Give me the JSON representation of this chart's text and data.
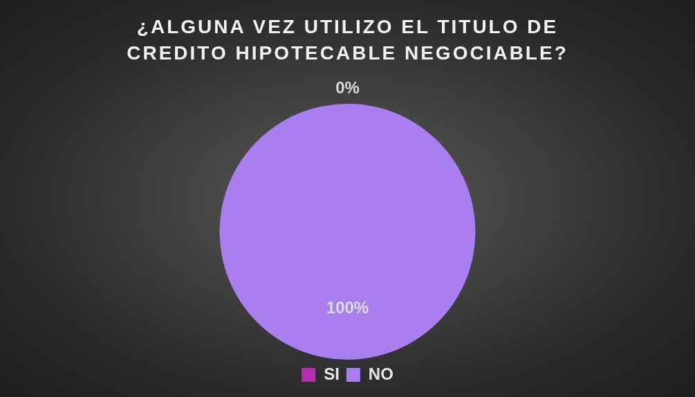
{
  "chart_data": {
    "type": "pie",
    "title": "¿ALGUNA VEZ UTILIZO EL TITULO DE CREDITO HIPOTECABLE NEGOCIABLE?",
    "categories": [
      "SI",
      "NO"
    ],
    "values": [
      0,
      100
    ],
    "colors": [
      "#b030b0",
      "#a97ff0"
    ],
    "value_labels": [
      "0%",
      "100%"
    ],
    "legend": "bottom"
  }
}
